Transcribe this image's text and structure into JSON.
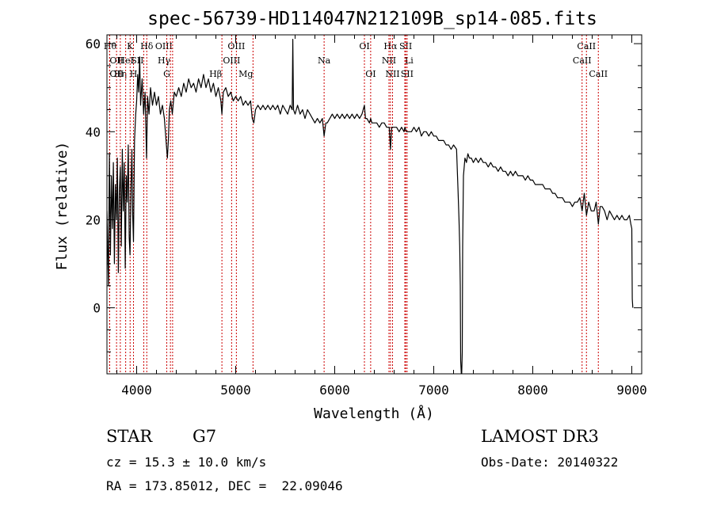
{
  "chart_data": {
    "type": "line",
    "title": "spec-56739-HD114047N212109B_sp14-085.fits",
    "xlabel": "Wavelength (Å)",
    "ylabel": "Flux (relative)",
    "xlim": [
      3700,
      9100
    ],
    "ylim": [
      -15,
      62
    ],
    "x_ticks": [
      4000,
      5000,
      6000,
      7000,
      8000,
      9000
    ],
    "y_ticks": [
      0,
      20,
      40,
      60
    ],
    "line_color": "#000000",
    "marker_color": "#cc0000",
    "spectrum": [
      [
        3700,
        22
      ],
      [
        3715,
        5
      ],
      [
        3725,
        35
      ],
      [
        3735,
        12
      ],
      [
        3745,
        30
      ],
      [
        3755,
        18
      ],
      [
        3765,
        33
      ],
      [
        3775,
        10
      ],
      [
        3785,
        28
      ],
      [
        3795,
        20
      ],
      [
        3805,
        34
      ],
      [
        3815,
        8
      ],
      [
        3825,
        26
      ],
      [
        3835,
        32
      ],
      [
        3845,
        14
      ],
      [
        3855,
        36
      ],
      [
        3865,
        22
      ],
      [
        3875,
        33
      ],
      [
        3885,
        9
      ],
      [
        3895,
        30
      ],
      [
        3905,
        24
      ],
      [
        3915,
        37
      ],
      [
        3925,
        16
      ],
      [
        3933,
        12
      ],
      [
        3942,
        27
      ],
      [
        3952,
        36
      ],
      [
        3960,
        21
      ],
      [
        3968,
        15
      ],
      [
        3978,
        38
      ],
      [
        3990,
        44
      ],
      [
        4000,
        47
      ],
      [
        4010,
        53
      ],
      [
        4020,
        49
      ],
      [
        4030,
        57
      ],
      [
        4040,
        46
      ],
      [
        4055,
        52
      ],
      [
        4070,
        44
      ],
      [
        4085,
        49
      ],
      [
        4100,
        34
      ],
      [
        4110,
        48
      ],
      [
        4125,
        44
      ],
      [
        4140,
        50
      ],
      [
        4160,
        46
      ],
      [
        4180,
        49
      ],
      [
        4200,
        46
      ],
      [
        4220,
        48
      ],
      [
        4240,
        44
      ],
      [
        4260,
        46
      ],
      [
        4280,
        43
      ],
      [
        4300,
        37
      ],
      [
        4310,
        34
      ],
      [
        4320,
        38
      ],
      [
        4330,
        45
      ],
      [
        4345,
        47
      ],
      [
        4360,
        44
      ],
      [
        4380,
        49
      ],
      [
        4400,
        48
      ],
      [
        4425,
        50
      ],
      [
        4450,
        48
      ],
      [
        4475,
        51
      ],
      [
        4500,
        49
      ],
      [
        4525,
        52
      ],
      [
        4550,
        50
      ],
      [
        4575,
        51
      ],
      [
        4600,
        49
      ],
      [
        4625,
        52
      ],
      [
        4650,
        50
      ],
      [
        4675,
        53
      ],
      [
        4700,
        50
      ],
      [
        4725,
        52
      ],
      [
        4750,
        49
      ],
      [
        4775,
        51
      ],
      [
        4800,
        48
      ],
      [
        4825,
        50
      ],
      [
        4850,
        47
      ],
      [
        4861,
        44
      ],
      [
        4875,
        49
      ],
      [
        4900,
        50
      ],
      [
        4925,
        48
      ],
      [
        4950,
        49
      ],
      [
        4975,
        47
      ],
      [
        5000,
        48
      ],
      [
        5025,
        47
      ],
      [
        5050,
        48
      ],
      [
        5075,
        46
      ],
      [
        5100,
        47
      ],
      [
        5125,
        46
      ],
      [
        5150,
        47
      ],
      [
        5167,
        43
      ],
      [
        5183,
        42
      ],
      [
        5200,
        45
      ],
      [
        5225,
        46
      ],
      [
        5250,
        45
      ],
      [
        5275,
        46
      ],
      [
        5300,
        45
      ],
      [
        5325,
        46
      ],
      [
        5350,
        45
      ],
      [
        5375,
        46
      ],
      [
        5400,
        45
      ],
      [
        5425,
        46
      ],
      [
        5450,
        44
      ],
      [
        5475,
        46
      ],
      [
        5500,
        45
      ],
      [
        5525,
        44
      ],
      [
        5550,
        46
      ],
      [
        5570,
        45
      ],
      [
        5577,
        61
      ],
      [
        5584,
        45
      ],
      [
        5600,
        44
      ],
      [
        5625,
        46
      ],
      [
        5650,
        44
      ],
      [
        5675,
        45
      ],
      [
        5700,
        43
      ],
      [
        5725,
        45
      ],
      [
        5750,
        44
      ],
      [
        5775,
        43
      ],
      [
        5800,
        42
      ],
      [
        5825,
        43
      ],
      [
        5850,
        42
      ],
      [
        5875,
        43
      ],
      [
        5893,
        39
      ],
      [
        5910,
        42
      ],
      [
        5925,
        42
      ],
      [
        5950,
        43
      ],
      [
        5975,
        44
      ],
      [
        6000,
        43
      ],
      [
        6025,
        44
      ],
      [
        6050,
        43
      ],
      [
        6075,
        44
      ],
      [
        6100,
        43
      ],
      [
        6125,
        44
      ],
      [
        6150,
        43
      ],
      [
        6175,
        44
      ],
      [
        6200,
        43
      ],
      [
        6225,
        44
      ],
      [
        6250,
        43
      ],
      [
        6275,
        44
      ],
      [
        6300,
        46
      ],
      [
        6310,
        43
      ],
      [
        6325,
        43
      ],
      [
        6350,
        42
      ],
      [
        6363,
        43
      ],
      [
        6375,
        42
      ],
      [
        6400,
        42
      ],
      [
        6425,
        42
      ],
      [
        6450,
        41
      ],
      [
        6475,
        42
      ],
      [
        6500,
        42
      ],
      [
        6525,
        41
      ],
      [
        6550,
        41
      ],
      [
        6563,
        36
      ],
      [
        6575,
        41
      ],
      [
        6600,
        41
      ],
      [
        6625,
        41
      ],
      [
        6650,
        40
      ],
      [
        6675,
        41
      ],
      [
        6700,
        40
      ],
      [
        6708,
        41
      ],
      [
        6725,
        40
      ],
      [
        6750,
        40
      ],
      [
        6775,
        40
      ],
      [
        6800,
        41
      ],
      [
        6825,
        40
      ],
      [
        6850,
        41
      ],
      [
        6875,
        39
      ],
      [
        6900,
        40
      ],
      [
        6925,
        40
      ],
      [
        6950,
        39
      ],
      [
        6975,
        40
      ],
      [
        7000,
        39
      ],
      [
        7025,
        39
      ],
      [
        7050,
        38
      ],
      [
        7075,
        38
      ],
      [
        7100,
        38
      ],
      [
        7125,
        37
      ],
      [
        7150,
        37
      ],
      [
        7175,
        36
      ],
      [
        7200,
        37
      ],
      [
        7230,
        36
      ],
      [
        7245,
        27
      ],
      [
        7255,
        20
      ],
      [
        7262,
        14
      ],
      [
        7268,
        5
      ],
      [
        7272,
        -12
      ],
      [
        7278,
        -15
      ],
      [
        7282,
        -15
      ],
      [
        7288,
        -10
      ],
      [
        7292,
        14
      ],
      [
        7300,
        30
      ],
      [
        7315,
        34
      ],
      [
        7330,
        33
      ],
      [
        7345,
        35
      ],
      [
        7360,
        34
      ],
      [
        7380,
        34
      ],
      [
        7400,
        33
      ],
      [
        7425,
        34
      ],
      [
        7450,
        33
      ],
      [
        7475,
        34
      ],
      [
        7500,
        33
      ],
      [
        7525,
        33
      ],
      [
        7550,
        32
      ],
      [
        7575,
        33
      ],
      [
        7600,
        32
      ],
      [
        7625,
        32
      ],
      [
        7650,
        31
      ],
      [
        7675,
        32
      ],
      [
        7700,
        31
      ],
      [
        7725,
        31
      ],
      [
        7750,
        30
      ],
      [
        7775,
        31
      ],
      [
        7800,
        30
      ],
      [
        7825,
        31
      ],
      [
        7850,
        30
      ],
      [
        7875,
        30
      ],
      [
        7900,
        30
      ],
      [
        7925,
        29
      ],
      [
        7950,
        30
      ],
      [
        7975,
        29
      ],
      [
        8000,
        29
      ],
      [
        8025,
        28
      ],
      [
        8050,
        28
      ],
      [
        8075,
        28
      ],
      [
        8100,
        28
      ],
      [
        8125,
        27
      ],
      [
        8150,
        27
      ],
      [
        8175,
        27
      ],
      [
        8200,
        26
      ],
      [
        8225,
        26
      ],
      [
        8250,
        25
      ],
      [
        8275,
        25
      ],
      [
        8300,
        25
      ],
      [
        8325,
        24
      ],
      [
        8350,
        24
      ],
      [
        8375,
        24
      ],
      [
        8400,
        23
      ],
      [
        8425,
        24
      ],
      [
        8450,
        24
      ],
      [
        8475,
        25
      ],
      [
        8498,
        22
      ],
      [
        8520,
        26
      ],
      [
        8542,
        21
      ],
      [
        8565,
        24
      ],
      [
        8590,
        22
      ],
      [
        8620,
        22
      ],
      [
        8640,
        24
      ],
      [
        8662,
        19
      ],
      [
        8680,
        23
      ],
      [
        8700,
        23
      ],
      [
        8725,
        22
      ],
      [
        8750,
        20
      ],
      [
        8775,
        22
      ],
      [
        8800,
        21
      ],
      [
        8825,
        20
      ],
      [
        8850,
        21
      ],
      [
        8875,
        20
      ],
      [
        8900,
        21
      ],
      [
        8925,
        20
      ],
      [
        8950,
        20
      ],
      [
        8975,
        21
      ],
      [
        8990,
        19
      ],
      [
        9000,
        18
      ],
      [
        9005,
        2
      ],
      [
        9010,
        0
      ]
    ],
    "line_markers": [
      {
        "name": "Hθ",
        "wavelength": 3797,
        "row": 1,
        "ha": "end"
      },
      {
        "name": "OII",
        "wavelength": 3727,
        "row": 2,
        "ha": "start"
      },
      {
        "name": "OII",
        "wavelength": 3727,
        "row": 3,
        "ha": "start"
      },
      {
        "name": "Hη",
        "wavelength": 3835,
        "row": 3,
        "ha": "middle"
      },
      {
        "name": "HeI",
        "wavelength": 3889,
        "row": 2,
        "ha": "middle"
      },
      {
        "name": "K",
        "wavelength": 3934,
        "row": 1,
        "ha": "middle"
      },
      {
        "name": "H",
        "wavelength": 3968,
        "row": 3,
        "ha": "middle"
      },
      {
        "name": "SII",
        "wavelength": 4072,
        "row": 2,
        "ha": "end"
      },
      {
        "name": "Hδ",
        "wavelength": 4102,
        "row": 1,
        "ha": "middle"
      },
      {
        "name": "OIII",
        "wavelength": 4363,
        "row": 1,
        "ha": "end"
      },
      {
        "name": "Hγ",
        "wavelength": 4341,
        "row": 2,
        "ha": "end"
      },
      {
        "name": "G",
        "wavelength": 4304,
        "row": 3,
        "ha": "middle"
      },
      {
        "name": "Hβ",
        "wavelength": 4861,
        "row": 3,
        "ha": "end"
      },
      {
        "name": "OIII",
        "wavelength": 4959,
        "row": 2,
        "ha": "middle"
      },
      {
        "name": "OIII",
        "wavelength": 5007,
        "row": 1,
        "ha": "middle"
      },
      {
        "name": "Mg",
        "wavelength": 5175,
        "row": 3,
        "ha": "end"
      },
      {
        "name": "Na",
        "wavelength": 5893,
        "row": 2,
        "ha": "middle"
      },
      {
        "name": "OI",
        "wavelength": 6300,
        "row": 1,
        "ha": "middle"
      },
      {
        "name": "OI",
        "wavelength": 6363,
        "row": 3,
        "ha": "middle"
      },
      {
        "name": "Hα",
        "wavelength": 6563,
        "row": 1,
        "ha": "middle"
      },
      {
        "name": "NII",
        "wavelength": 6548,
        "row": 2,
        "ha": "middle"
      },
      {
        "name": "NII",
        "wavelength": 6584,
        "row": 3,
        "ha": "middle"
      },
      {
        "name": "SII",
        "wavelength": 6717,
        "row": 1,
        "ha": "middle"
      },
      {
        "name": "Li",
        "wavelength": 6708,
        "row": 2,
        "ha": "start"
      },
      {
        "name": "SII",
        "wavelength": 6731,
        "row": 3,
        "ha": "middle"
      },
      {
        "name": "CaII",
        "wavelength": 8542,
        "row": 1,
        "ha": "middle"
      },
      {
        "name": "CaII",
        "wavelength": 8498,
        "row": 2,
        "ha": "middle"
      },
      {
        "name": "CaII",
        "wavelength": 8662,
        "row": 3,
        "ha": "middle"
      }
    ]
  },
  "info": {
    "object_class": "STAR",
    "subclass": "G7",
    "survey": "LAMOST DR3",
    "redshift": "cz = 15.3 ± 10.0 km/s",
    "obs_date": "Obs-Date: 20140322",
    "coords": "RA = 173.85012, DEC =  22.09046"
  }
}
